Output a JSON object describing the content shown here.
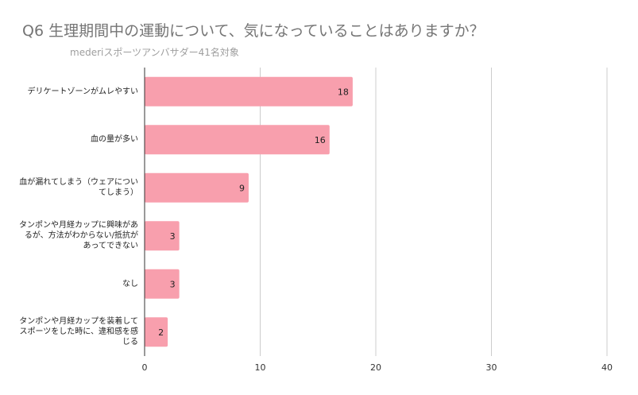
{
  "title": "Q6 生理期間中の運動について、気になっていることはありますか？",
  "subtitle": "mederiスポーツアンバサダー41名対象",
  "colors": {
    "bar": "#f89fad",
    "grid": "#cccccc",
    "axis": "#333333",
    "title": "#757575"
  },
  "chart_data": {
    "type": "bar",
    "orientation": "horizontal",
    "categories": [
      "デリケートゾーンがムレやすい",
      "血の量が多い",
      "血が漏れてしまう（ウェアについてしまう）",
      "タンポンや月経カップに興味があるが、方法がわからない/抵抗があってできない",
      "なし",
      "タンポンや月経カップを装着してスポーツをした時に、違和感を感じる"
    ],
    "values": [
      18,
      16,
      9,
      3,
      3,
      2
    ],
    "xlim": [
      0,
      40
    ],
    "xticks": [
      "0",
      "10",
      "20",
      "30",
      "40"
    ],
    "grid": true,
    "data_labels": true
  }
}
